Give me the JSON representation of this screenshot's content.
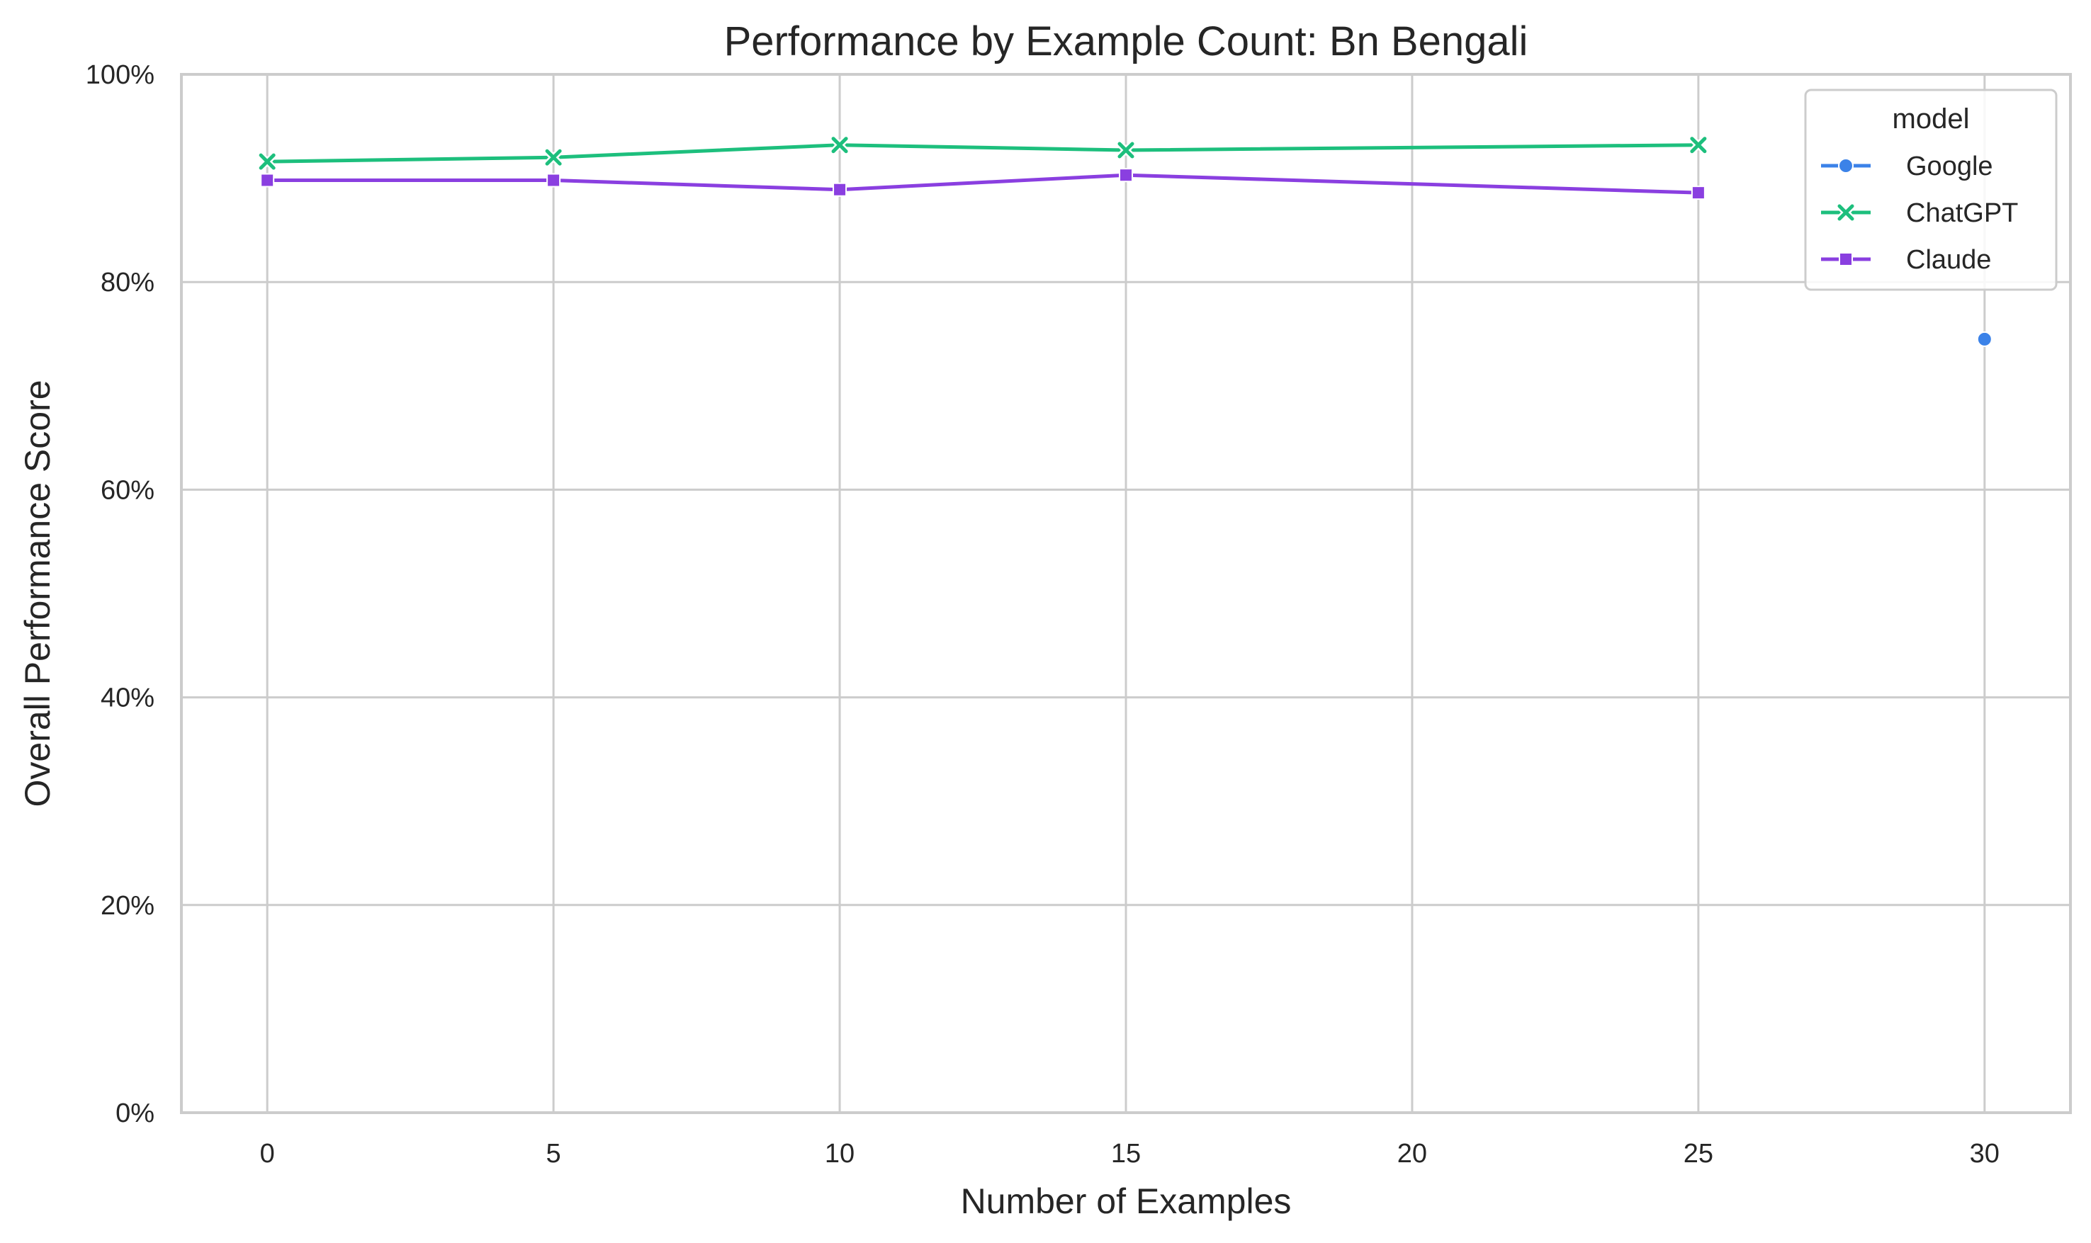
{
  "chart_data": {
    "type": "line",
    "title": "Performance by Example Count: Bn Bengali",
    "xlabel": "Number of Examples",
    "ylabel": "Overall Performance Score",
    "xlim": [
      -1.5,
      31.5
    ],
    "ylim": [
      0,
      100
    ],
    "x_ticks": [
      0,
      5,
      10,
      15,
      20,
      25,
      30
    ],
    "x_tick_labels": [
      "0",
      "5",
      "10",
      "15",
      "20",
      "25",
      "30"
    ],
    "y_ticks": [
      0,
      20,
      40,
      60,
      80,
      100
    ],
    "y_tick_labels": [
      "0%",
      "20%",
      "40%",
      "60%",
      "80%",
      "100%"
    ],
    "grid": true,
    "legend": {
      "title": "model",
      "position": "top-right"
    },
    "series": [
      {
        "name": "Google",
        "marker": "circle",
        "color": "#3b82e8",
        "x": [
          30
        ],
        "y": [
          74.5
        ]
      },
      {
        "name": "ChatGPT",
        "marker": "x",
        "color": "#1dbf7d",
        "x": [
          0,
          5,
          10,
          15,
          25
        ],
        "y": [
          91.6,
          92.0,
          93.2,
          92.7,
          93.2
        ]
      },
      {
        "name": "Claude",
        "marker": "square",
        "color": "#8a3fe0",
        "x": [
          0,
          5,
          10,
          15,
          25
        ],
        "y": [
          89.8,
          89.8,
          88.9,
          90.3,
          88.6
        ]
      }
    ]
  }
}
